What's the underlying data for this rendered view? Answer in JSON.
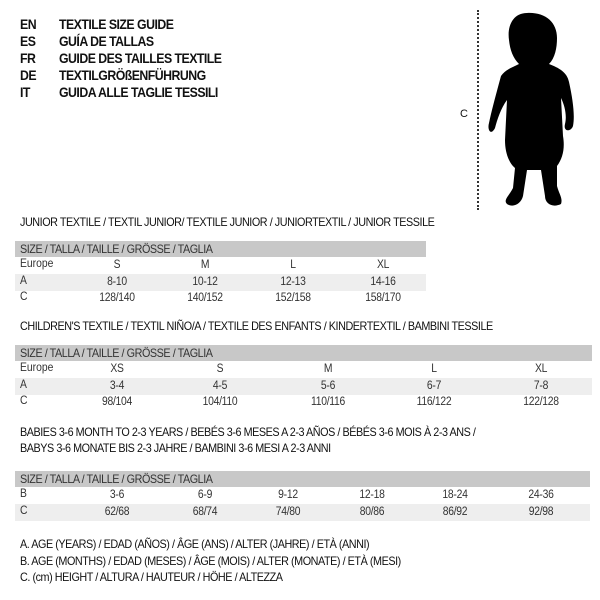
{
  "header": [
    {
      "code": "EN",
      "title": "TEXTILE SIZE GUIDE"
    },
    {
      "code": "ES",
      "title": "GUÍA DE TALLAS"
    },
    {
      "code": "FR",
      "title": "GUIDE DES TAILLES TEXTILE"
    },
    {
      "code": "DE",
      "title": "TEXTILGRÖßENFÜHRUNG"
    },
    {
      "code": "IT",
      "title": "GUIDA ALLE TAGLIE TESSILI"
    }
  ],
  "figure": {
    "measure_label": "C",
    "icon": "child-silhouette"
  },
  "size_header": "SIZE / TALLA / TAILLE / GRÖSSE / TAGLIA",
  "junior": {
    "title": "JUNIOR TEXTILE / TEXTIL JUNIOR/ TEXTILE JUNIOR / JUNIORTEXTIL / JUNIOR TESSILE",
    "rows": [
      {
        "label": "Europe",
        "values": [
          "S",
          "M",
          "L",
          "XL"
        ]
      },
      {
        "label": "A",
        "values": [
          "8-10",
          "10-12",
          "12-13",
          "14-16"
        ]
      },
      {
        "label": "C",
        "values": [
          "128/140",
          "140/152",
          "152/158",
          "158/170"
        ]
      }
    ]
  },
  "children": {
    "title": "CHILDREN'S TEXTILE / TEXTIL NIÑO/A / TEXTILE DES ENFANTS / KINDERTEXTIL / BAMBINI TESSILE",
    "rows": [
      {
        "label": "Europe",
        "values": [
          "XS",
          "S",
          "M",
          "L",
          "XL"
        ]
      },
      {
        "label": "A",
        "values": [
          "3-4",
          "4-5",
          "5-6",
          "6-7",
          "7-8"
        ]
      },
      {
        "label": "C",
        "values": [
          "98/104",
          "104/110",
          "110/116",
          "116/122",
          "122/128"
        ]
      }
    ]
  },
  "babies": {
    "title_line1": "BABIES 3-6 MONTH TO 2-3 YEARS / BEBÉS 3-6 MESES A 2-3 AÑOS / BÉBÉS 3-6 MOIS À 2-3 ANS /",
    "title_line2": "BABYS 3-6 MONATE BIS 2-3 JAHRE / BAMBINI 3-6 MESI A 2-3 ANNI",
    "rows": [
      {
        "label": "B",
        "values": [
          "3-6",
          "6-9",
          "9-12",
          "12-18",
          "18-24",
          "24-36"
        ]
      },
      {
        "label": "C",
        "values": [
          "62/68",
          "68/74",
          "74/80",
          "80/86",
          "86/92",
          "92/98"
        ]
      }
    ]
  },
  "legend": [
    "A. AGE (YEARS) / EDAD (AÑOS) / ÂGE (ANS) / ALTER (JAHRE) / ETÀ (ANNI)",
    "B. AGE (MONTHS) / EDAD (MESES) / ÂGE (MOIS) / ALTER (MONATE) / ETÀ (MESI)",
    "C. (cm) HEIGHT / ALTURA / HAUTEUR / HÖHE / ALTEZZA"
  ]
}
